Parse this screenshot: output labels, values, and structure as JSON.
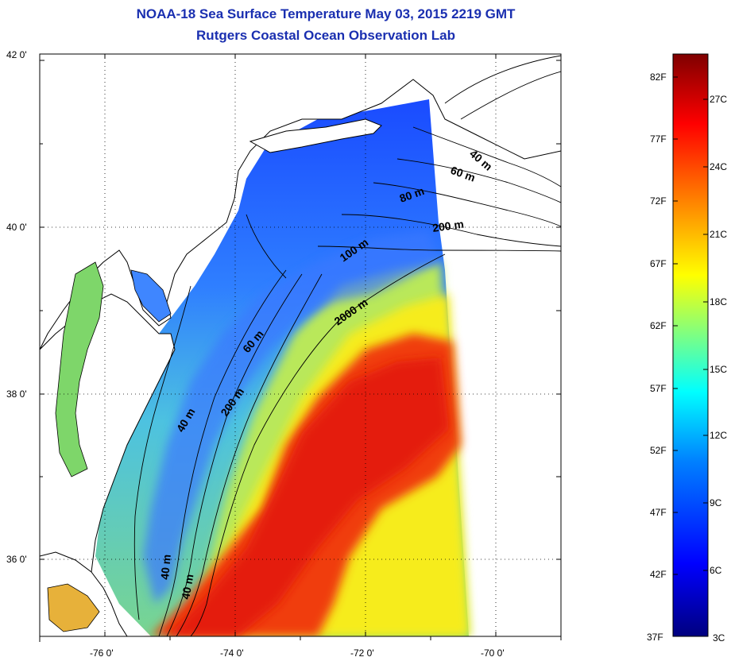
{
  "title": "NOAA-18 Sea Surface Temperature May 03, 2015 2219 GMT",
  "subtitle": "Rutgers Coastal Ocean Observation Lab",
  "axes": {
    "latitude_labels": [
      "42 0'",
      "40 0'",
      "38 0'",
      "36 0'"
    ],
    "longitude_labels": [
      "-76 0'",
      "-74 0'",
      "-72 0'",
      "-70 0'"
    ]
  },
  "isobath_labels": [
    "40 m",
    "60 m",
    "80 m",
    "100 m",
    "200 m",
    "2000 m",
    "40 m",
    "60 m",
    "200 m",
    "40 m"
  ],
  "colorbar": {
    "fahrenheit": [
      "82F",
      "77F",
      "72F",
      "67F",
      "62F",
      "57F",
      "52F",
      "47F",
      "42F",
      "37F"
    ],
    "celsius": [
      "27C",
      "24C",
      "21C",
      "18C",
      "15C",
      "12C",
      "9C",
      "6C",
      "3C"
    ],
    "colors": [
      "#00007f",
      "#0000ff",
      "#0080ff",
      "#00ffff",
      "#80ff80",
      "#ffff00",
      "#ff8000",
      "#ff0000",
      "#7f0000"
    ]
  },
  "colors": {
    "title": "#1a2fb0",
    "land": "#ffffff",
    "coast": "#000000"
  }
}
